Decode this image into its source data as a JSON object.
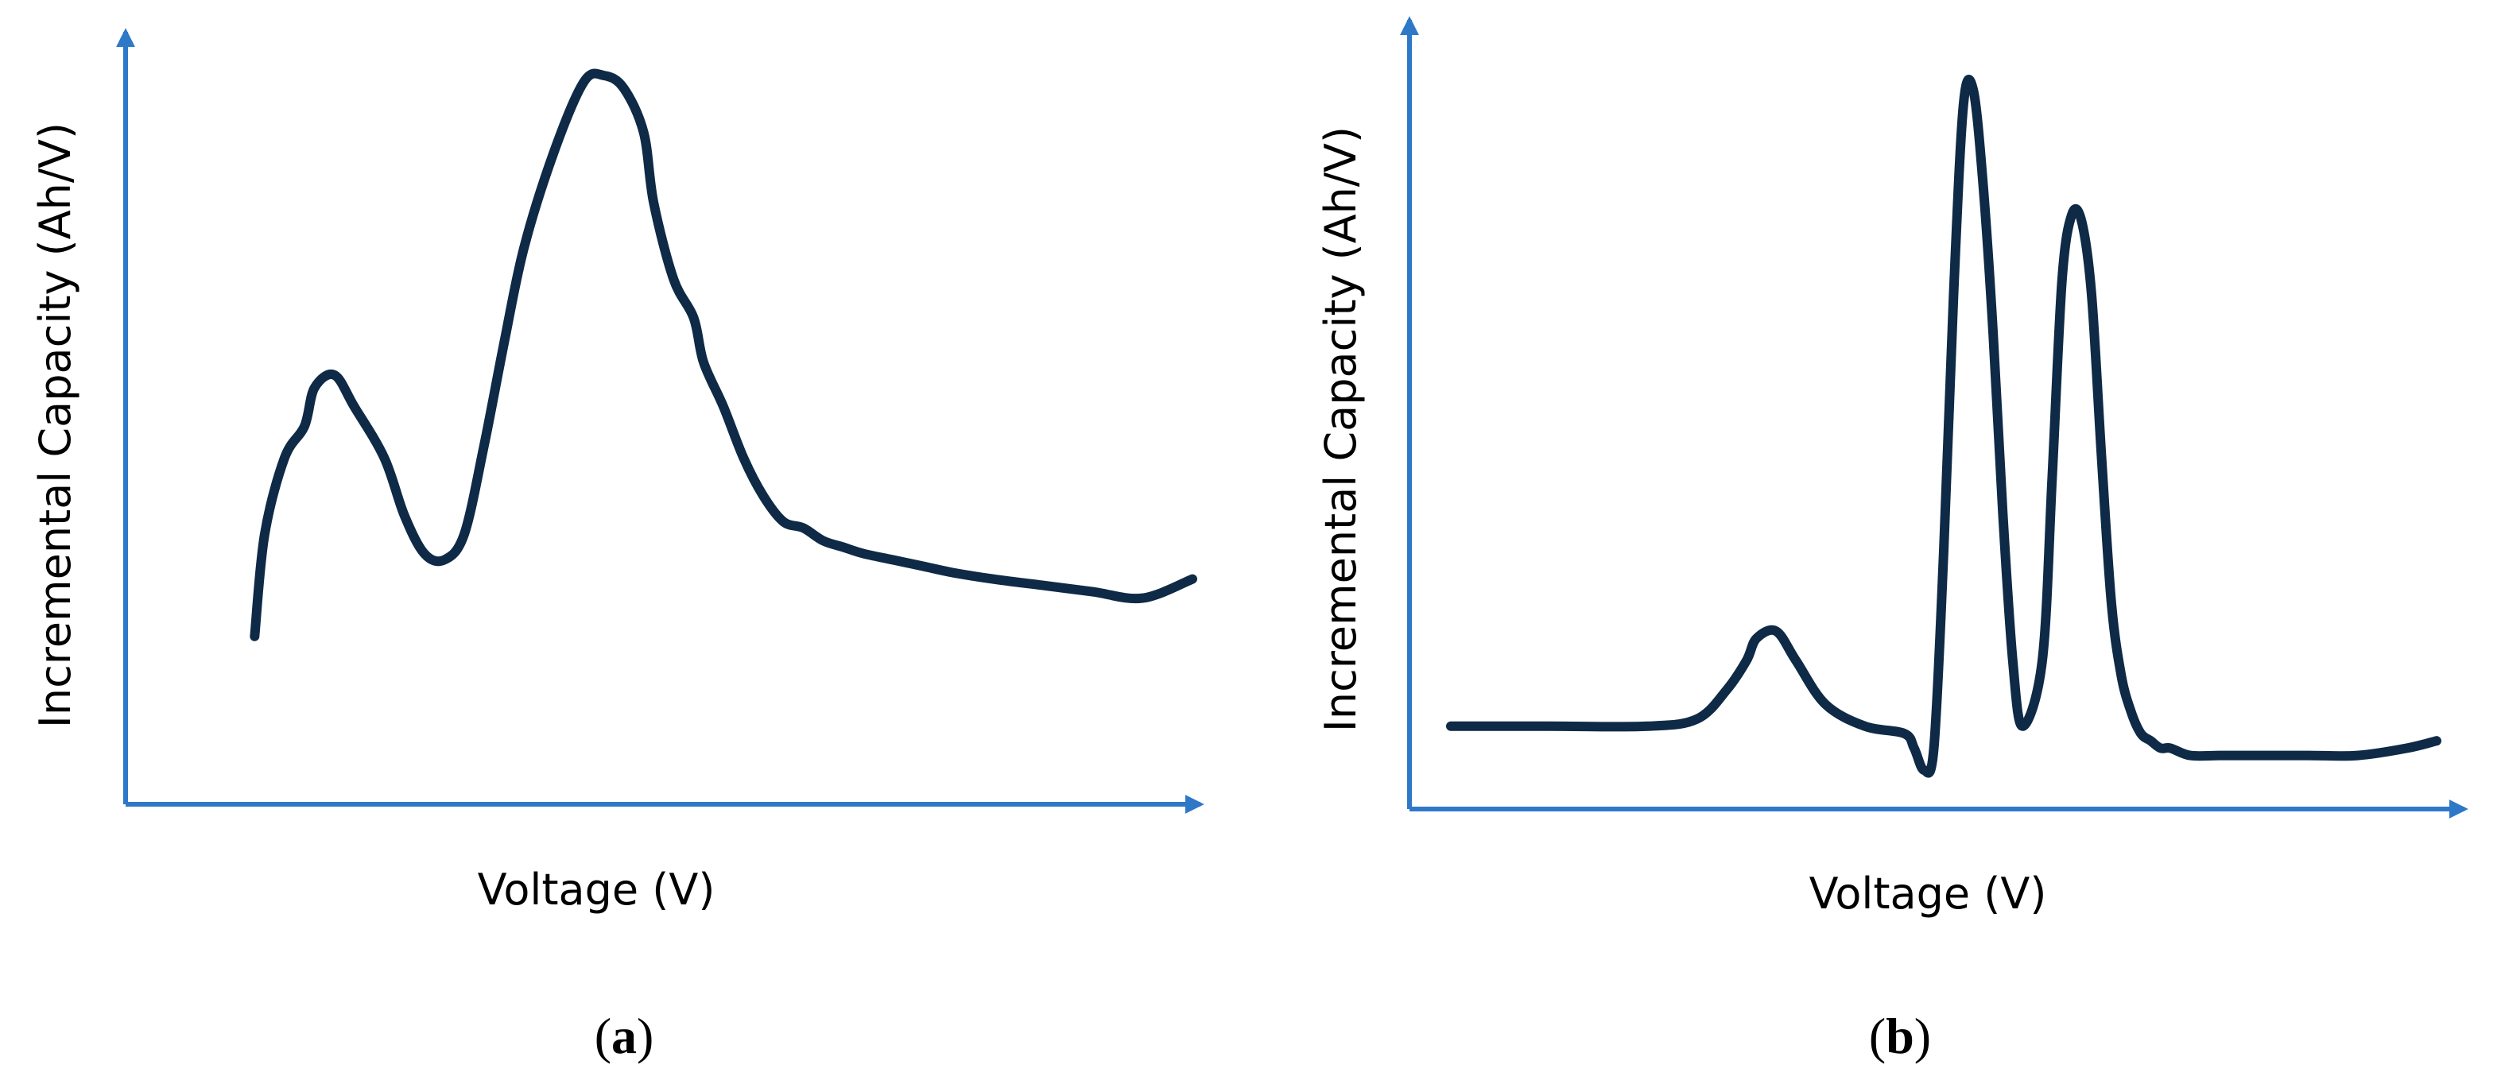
{
  "colors": {
    "axis": "#2E78C8",
    "curve": "#0E2A47",
    "background": "#FFFFFF"
  },
  "chart_data": [
    {
      "type": "line",
      "panel_label": {
        "open": "(",
        "letter": "a",
        "close": ")"
      },
      "xlabel": "Voltage (V)",
      "ylabel": "Incremental Capacity (Ah/V)",
      "ticks": "none",
      "grid": false,
      "xlim": [
        0,
        100
      ],
      "ylim": [
        0,
        100
      ],
      "series": [
        {
          "x": [
            6,
            7,
            9,
            11,
            12,
            14,
            16,
            19,
            21,
            23,
            25,
            27,
            29,
            31,
            33,
            36,
            39,
            41,
            43,
            45,
            46,
            48,
            50,
            51,
            53,
            55,
            57,
            59,
            61,
            63,
            65,
            67,
            70,
            73,
            76,
            80,
            85,
            90,
            95,
            100
          ],
          "y": [
            12,
            28,
            40,
            45,
            51,
            53,
            48,
            40,
            31,
            25,
            24,
            28,
            42,
            58,
            73,
            88,
            99,
            100,
            98,
            91,
            80,
            68,
            62,
            55,
            48,
            40,
            34,
            30,
            29,
            27,
            26,
            25,
            24,
            23,
            22,
            21,
            20,
            19,
            18,
            21
          ]
        }
      ]
    },
    {
      "type": "line",
      "panel_label": {
        "open": "(",
        "letter": "b",
        "close": ")"
      },
      "xlabel": "Voltage (V)",
      "ylabel": "Incremental Capacity (Ah/V)",
      "ticks": "none",
      "grid": false,
      "xlim": [
        0,
        100
      ],
      "ylim": [
        0,
        100
      ],
      "series": [
        {
          "x": [
            0,
            10,
            20,
            25,
            28,
            30,
            31,
            33,
            35,
            38,
            42,
            46,
            47,
            48,
            49,
            50,
            51,
            52,
            53,
            54,
            55,
            56,
            57,
            58,
            60,
            61,
            62,
            63,
            64,
            65,
            66,
            67,
            68,
            69,
            70,
            71,
            72,
            73,
            75,
            78,
            82,
            87,
            92,
            97,
            100
          ],
          "y": [
            11,
            11,
            11,
            12,
            16,
            20,
            23,
            24,
            20,
            14,
            11,
            10,
            8,
            5,
            8,
            35,
            70,
            96,
            98,
            85,
            65,
            40,
            20,
            11,
            20,
            45,
            72,
            81,
            80,
            70,
            48,
            28,
            18,
            13,
            10,
            9,
            8,
            8,
            7,
            7,
            7,
            7,
            7,
            8,
            9
          ]
        }
      ]
    }
  ]
}
